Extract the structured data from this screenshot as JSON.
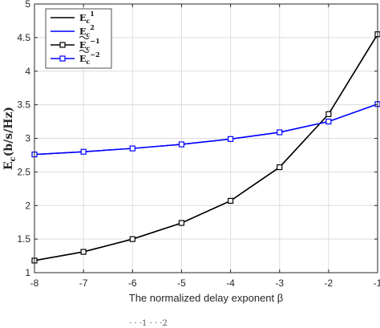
{
  "chart_data": {
    "type": "line",
    "xlabel": "The normalized delay exponent  β",
    "ylabel": "E",
    "ylabel_sub": "c",
    "ylabel_units": "(b/s/Hz)",
    "xlim": [
      -8,
      -1
    ],
    "ylim": [
      1,
      5
    ],
    "xticks": [
      "-8",
      "-7",
      "-6",
      "-5",
      "-4",
      "-3",
      "-2",
      "-1"
    ],
    "yticks": [
      "1",
      "1.5",
      "2",
      "2.5",
      "3",
      "3.5",
      "4",
      "4.5",
      "5"
    ],
    "grid": true,
    "legend_position": "top-left",
    "x": [
      -8,
      -7,
      -6,
      -5,
      -4,
      -3,
      -2,
      -1
    ],
    "series": [
      {
        "name": "E",
        "name_sub": "c",
        "name_sup": "1",
        "color": "#000000",
        "marker": "none",
        "values": [
          1.18,
          1.31,
          1.5,
          1.74,
          2.07,
          2.57,
          3.36,
          4.55
        ]
      },
      {
        "name": "E",
        "name_sub": "c",
        "name_sup": "2",
        "color": "#0000ff",
        "marker": "none",
        "values": [
          2.76,
          2.8,
          2.85,
          2.91,
          2.99,
          3.09,
          3.25,
          3.51
        ]
      },
      {
        "name": "E",
        "name_sub": "c",
        "name_sup": "−1",
        "name_tilde": true,
        "color": "#000000",
        "marker": "square",
        "values": [
          1.18,
          1.31,
          1.5,
          1.74,
          2.07,
          2.57,
          3.36,
          4.55
        ]
      },
      {
        "name": "E",
        "name_sub": "c",
        "name_sup": "−2",
        "name_tilde": true,
        "color": "#0000ff",
        "marker": "square",
        "values": [
          2.76,
          2.8,
          2.85,
          2.91,
          2.99,
          3.09,
          3.25,
          3.51
        ]
      }
    ]
  },
  "caption_fragment": "· · ·1   · · ·2"
}
